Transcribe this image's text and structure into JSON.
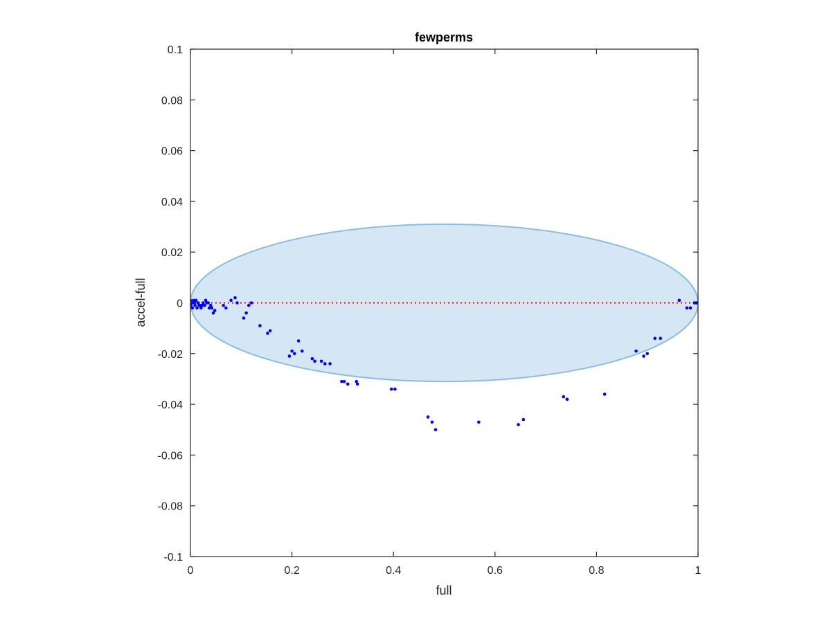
{
  "chart_data": {
    "type": "scatter",
    "title": "fewperms",
    "xlabel": "full",
    "ylabel": "accel-full",
    "xlim": [
      0,
      1
    ],
    "ylim": [
      -0.1,
      0.1
    ],
    "x_ticks": [
      "0",
      "0.2",
      "0.4",
      "0.6",
      "0.8",
      "1"
    ],
    "y_ticks": [
      "0.1",
      "0.08",
      "0.06",
      "0.04",
      "0.02",
      "0",
      "-0.02",
      "-0.04",
      "-0.06",
      "-0.08",
      "-0.1"
    ],
    "grid": false,
    "legend": "none",
    "colors": {
      "points": "#0000ff",
      "reference_line": "#ff0000",
      "ellipse_fill": "#d5e6f4",
      "ellipse_edge": "#8cbde0",
      "axes": "#262626"
    },
    "reference_line": {
      "y": 0,
      "style": "dotted",
      "x_range": [
        0,
        1
      ]
    },
    "ellipse": {
      "center": [
        0.5,
        0
      ],
      "x_radius": 0.5,
      "y_radius": 0.031
    },
    "points": [
      [
        0.0,
        0.001
      ],
      [
        0.001,
        -0.001
      ],
      [
        0.003,
        0.0
      ],
      [
        0.004,
        -0.002
      ],
      [
        0.006,
        0.001
      ],
      [
        0.008,
        0.0
      ],
      [
        0.009,
        -0.001
      ],
      [
        0.011,
        0.001
      ],
      [
        0.013,
        -0.002
      ],
      [
        0.015,
        0.0
      ],
      [
        0.017,
        -0.001
      ],
      [
        0.019,
        -0.001
      ],
      [
        0.021,
        -0.002
      ],
      [
        0.023,
        -0.001
      ],
      [
        0.025,
        0.0
      ],
      [
        0.028,
        -0.001
      ],
      [
        0.03,
        0.001
      ],
      [
        0.032,
        0.0
      ],
      [
        0.035,
        0.0
      ],
      [
        0.037,
        -0.002
      ],
      [
        0.04,
        -0.001
      ],
      [
        0.042,
        -0.002
      ],
      [
        0.045,
        -0.004
      ],
      [
        0.048,
        -0.003
      ],
      [
        0.065,
        -0.001
      ],
      [
        0.07,
        -0.002
      ],
      [
        0.08,
        0.001
      ],
      [
        0.088,
        0.002
      ],
      [
        0.092,
        0.0
      ],
      [
        0.105,
        -0.006
      ],
      [
        0.11,
        -0.004
      ],
      [
        0.115,
        -0.001
      ],
      [
        0.12,
        0.0
      ],
      [
        0.137,
        -0.009
      ],
      [
        0.152,
        -0.012
      ],
      [
        0.157,
        -0.011
      ],
      [
        0.195,
        -0.021
      ],
      [
        0.2,
        -0.019
      ],
      [
        0.205,
        -0.02
      ],
      [
        0.213,
        -0.015
      ],
      [
        0.22,
        -0.019
      ],
      [
        0.24,
        -0.022
      ],
      [
        0.245,
        -0.023
      ],
      [
        0.258,
        -0.023
      ],
      [
        0.265,
        -0.024
      ],
      [
        0.275,
        -0.024
      ],
      [
        0.298,
        -0.031
      ],
      [
        0.303,
        -0.031
      ],
      [
        0.31,
        -0.032
      ],
      [
        0.327,
        -0.031
      ],
      [
        0.329,
        -0.032
      ],
      [
        0.396,
        -0.034
      ],
      [
        0.403,
        -0.034
      ],
      [
        0.468,
        -0.045
      ],
      [
        0.476,
        -0.047
      ],
      [
        0.483,
        -0.05
      ],
      [
        0.568,
        -0.047
      ],
      [
        0.646,
        -0.048
      ],
      [
        0.656,
        -0.046
      ],
      [
        0.735,
        -0.037
      ],
      [
        0.742,
        -0.038
      ],
      [
        0.816,
        -0.036
      ],
      [
        0.878,
        -0.019
      ],
      [
        0.893,
        -0.021
      ],
      [
        0.9,
        -0.02
      ],
      [
        0.915,
        -0.014
      ],
      [
        0.926,
        -0.014
      ],
      [
        0.963,
        0.001
      ],
      [
        0.978,
        -0.002
      ],
      [
        0.985,
        -0.002
      ],
      [
        0.993,
        0.0
      ],
      [
        0.997,
        0.0
      ],
      [
        0.999,
        0.0
      ],
      [
        1.0,
        0.0
      ]
    ]
  }
}
